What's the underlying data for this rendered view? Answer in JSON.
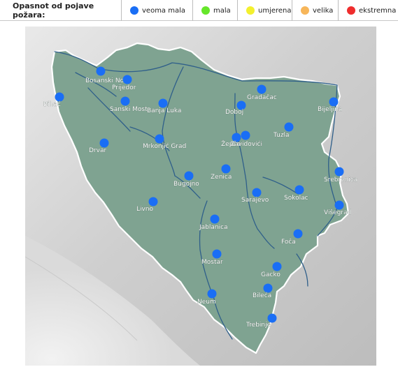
{
  "legend": {
    "title": "Opasnot od pojave požara:",
    "levels": [
      {
        "label": "veoma mala",
        "color": "#1a6ef5"
      },
      {
        "label": "mala",
        "color": "#66e62a"
      },
      {
        "label": "umjerena",
        "color": "#f3f02e"
      },
      {
        "label": "velika",
        "color": "#f7b65a"
      },
      {
        "label": "ekstremna",
        "color": "#ef2d2d"
      }
    ]
  },
  "map": {
    "land_color": "#7fa391",
    "river_color": "#2f5f8a",
    "cities": [
      {
        "name": "Bosanski Novi"
      },
      {
        "name": "Prijedor"
      },
      {
        "name": "Sanski Most"
      },
      {
        "name": "Banja Luka"
      },
      {
        "name": "Gradačac"
      },
      {
        "name": "Doboj"
      },
      {
        "name": "Bijeljina"
      },
      {
        "name": "Tuzla"
      },
      {
        "name": "Zavidovići"
      },
      {
        "name": "Žepče"
      },
      {
        "name": "Drvar"
      },
      {
        "name": "Mrkonjić Grad"
      },
      {
        "name": "Zenica"
      },
      {
        "name": "Bugojno"
      },
      {
        "name": "Srebrenica"
      },
      {
        "name": "Sarajevo"
      },
      {
        "name": "Sokolac"
      },
      {
        "name": "Livno"
      },
      {
        "name": "Višegrad"
      },
      {
        "name": "Jablanica"
      },
      {
        "name": "Foča"
      },
      {
        "name": "Mostar"
      },
      {
        "name": "Gacko"
      },
      {
        "name": "Bileća"
      },
      {
        "name": "Neum"
      },
      {
        "name": "Trebinje"
      },
      {
        "name": "Bihać"
      }
    ]
  }
}
